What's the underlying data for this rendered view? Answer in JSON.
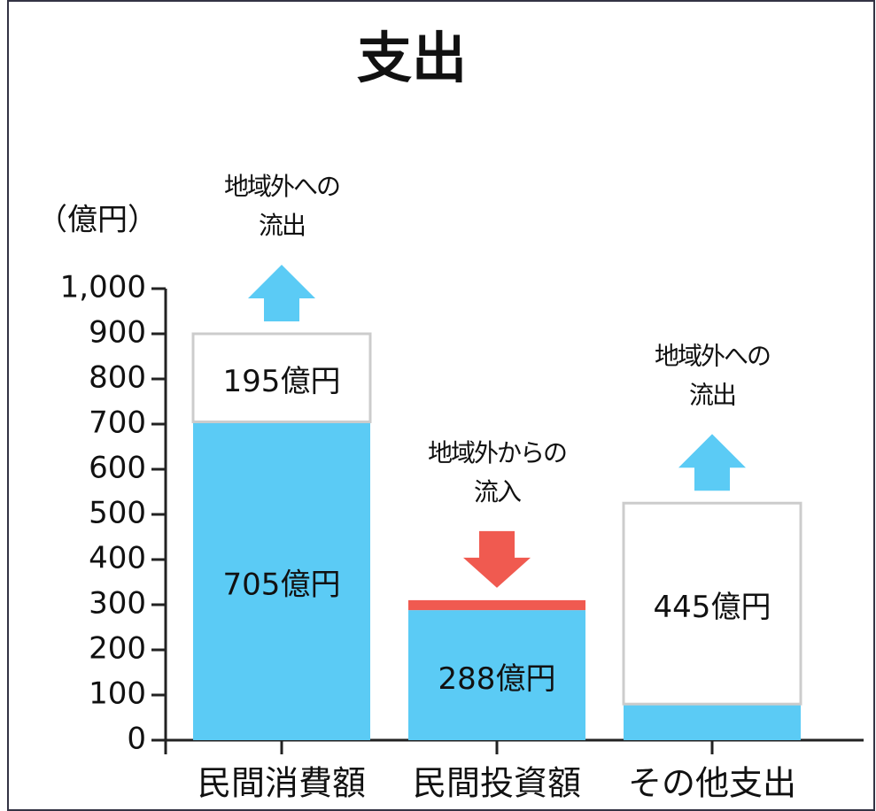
{
  "chart_data": {
    "type": "stacked_bar",
    "title": "支出",
    "y_label": "（億円）",
    "categories": [
      "民間消費額",
      "民間投資額",
      "その他支出"
    ],
    "series": [
      {
        "color": "#5bcbf5",
        "values": [
          705,
          288,
          80
        ],
        "value_labels": [
          "705億円",
          "288億円",
          null
        ]
      },
      {
        "color": "#f05a50",
        "values": [
          null,
          22,
          null
        ]
      },
      {
        "color": "#ffffff",
        "values": [
          195,
          null,
          445
        ],
        "value_labels": [
          "195億円",
          null,
          "445億円"
        ]
      }
    ],
    "ylim": [
      0,
      1000
    ],
    "yticks": [
      0,
      100,
      200,
      300,
      400,
      500,
      600,
      700,
      800,
      900,
      {
        "value": 1000,
        "label": "1,000"
      }
    ],
    "annotations": [
      {
        "lines": [
          "地域外への",
          "流出"
        ],
        "direction": "up",
        "color": "#5bcbf5"
      },
      {
        "lines": [
          "地域外からの",
          "流入"
        ],
        "direction": "down",
        "color": "#f05a50"
      },
      {
        "lines": [
          "地域外への",
          "流出"
        ],
        "direction": "up",
        "color": "#5bcbf5"
      }
    ]
  }
}
